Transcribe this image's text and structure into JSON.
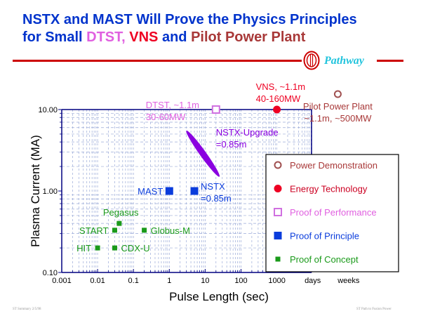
{
  "header": {
    "title_line1": "NSTX and MAST Will Prove the Physics Principles",
    "title_line2_prefix": "for Small ",
    "title_line2_dtst": "DTST",
    "title_line2_sep": ", ",
    "title_line2_vns": "VNS",
    "title_line2_and": " and ",
    "title_line2_pilot": "Pilot Power Plant",
    "logo_text": "Pathway",
    "logo_icon": "pathway-logo-icon"
  },
  "footer": {
    "left": "ST Summary 2/5/98",
    "right": "ST Path to Fusion Power"
  },
  "colors": {
    "title": "#0033cc",
    "dtst": "#e060e0",
    "vns": "#ee0022",
    "pilot": "#a83838",
    "concept": "#1a9a1a",
    "principle": "#0a3cdc",
    "performance": "#d070e0",
    "energy": "#ee0022",
    "power": "#a05050",
    "nstx_upgrade": "#8a00e0",
    "axis": "#000080",
    "grid": "#9aaad8"
  },
  "chart_data": {
    "type": "scatter",
    "title": "NSTX and MAST Will Prove the Physics Principles for Small DTST, VNS and Pilot Power Plant",
    "xlabel": "Pulse Length (sec)",
    "ylabel": "Plasma Current (MA)",
    "xscale": "log",
    "yscale": "log",
    "xlim": [
      0.001,
      100000
    ],
    "ylim": [
      0.1,
      10
    ],
    "grid": true,
    "x_ticks": [
      {
        "value": 0.001,
        "label": "0.001"
      },
      {
        "value": 0.01,
        "label": "0.01"
      },
      {
        "value": 0.1,
        "label": "0.1"
      },
      {
        "value": 1,
        "label": "1"
      },
      {
        "value": 10,
        "label": "10"
      },
      {
        "value": 100,
        "label": "100"
      },
      {
        "value": 1000,
        "label": "1000"
      },
      {
        "value": 10000,
        "label": "days"
      },
      {
        "value": 100000,
        "label": "weeks"
      }
    ],
    "y_ticks": [
      {
        "value": 10,
        "label": "10.00"
      },
      {
        "value": 1,
        "label": "1.00"
      },
      {
        "value": 0.1,
        "label": "0.10"
      }
    ],
    "legend_placement": "right",
    "legend": [
      {
        "key": "power",
        "label": "Power Demonstration",
        "marker": "open-circle"
      },
      {
        "key": "energy",
        "label": "Energy Technology",
        "marker": "filled-circle"
      },
      {
        "key": "performance",
        "label": "Proof of Performance",
        "marker": "open-square"
      },
      {
        "key": "principle",
        "label": "Proof of Principle",
        "marker": "filled-square"
      },
      {
        "key": "concept",
        "label": "Proof of Concept",
        "marker": "small-filled-square"
      }
    ],
    "points": [
      {
        "name": "HIT",
        "label": "HIT",
        "x": 0.01,
        "y": 0.2,
        "category": "concept",
        "label_side": "left"
      },
      {
        "name": "CDX-U",
        "label": "CDX-U",
        "x": 0.03,
        "y": 0.2,
        "category": "concept",
        "label_side": "right"
      },
      {
        "name": "START",
        "label": "START",
        "x": 0.03,
        "y": 0.33,
        "category": "concept",
        "label_side": "left"
      },
      {
        "name": "Pegasus",
        "label": "Pegasus",
        "x": 0.04,
        "y": 0.4,
        "category": "concept",
        "label_side": "above"
      },
      {
        "name": "Globus-M",
        "label": "Globus-M",
        "x": 0.2,
        "y": 0.33,
        "category": "concept",
        "label_side": "right"
      },
      {
        "name": "MAST",
        "label": "MAST",
        "x": 1,
        "y": 1.0,
        "category": "principle",
        "label_side": "left"
      },
      {
        "name": "NSTX",
        "label": "NSTX\n=0.85m",
        "x": 5,
        "y": 1.0,
        "category": "principle",
        "label_side": "right"
      },
      {
        "name": "DTST",
        "label": "DTST, ~1.1m\n30-60MW",
        "x": 20,
        "y": 10,
        "category": "performance",
        "label_side": "left"
      },
      {
        "name": "VNS",
        "label": "VNS, ~1.1m\n40-160MW",
        "x": 1000,
        "y": 10,
        "category": "energy",
        "label_side": "above"
      },
      {
        "name": "Pilot Power Plant",
        "label": "Pilot Power Plant\n~1.1m, ~500MW",
        "x": 50000,
        "y": 20,
        "category": "power",
        "label_side": "below"
      }
    ],
    "regions": [
      {
        "name": "NSTX-Upgrade",
        "label": "NSTX-Upgrade\n=0.85m",
        "shape": "ellipse",
        "x_range": [
          3,
          25
        ],
        "y_range": [
          1.5,
          5.5
        ]
      }
    ]
  }
}
